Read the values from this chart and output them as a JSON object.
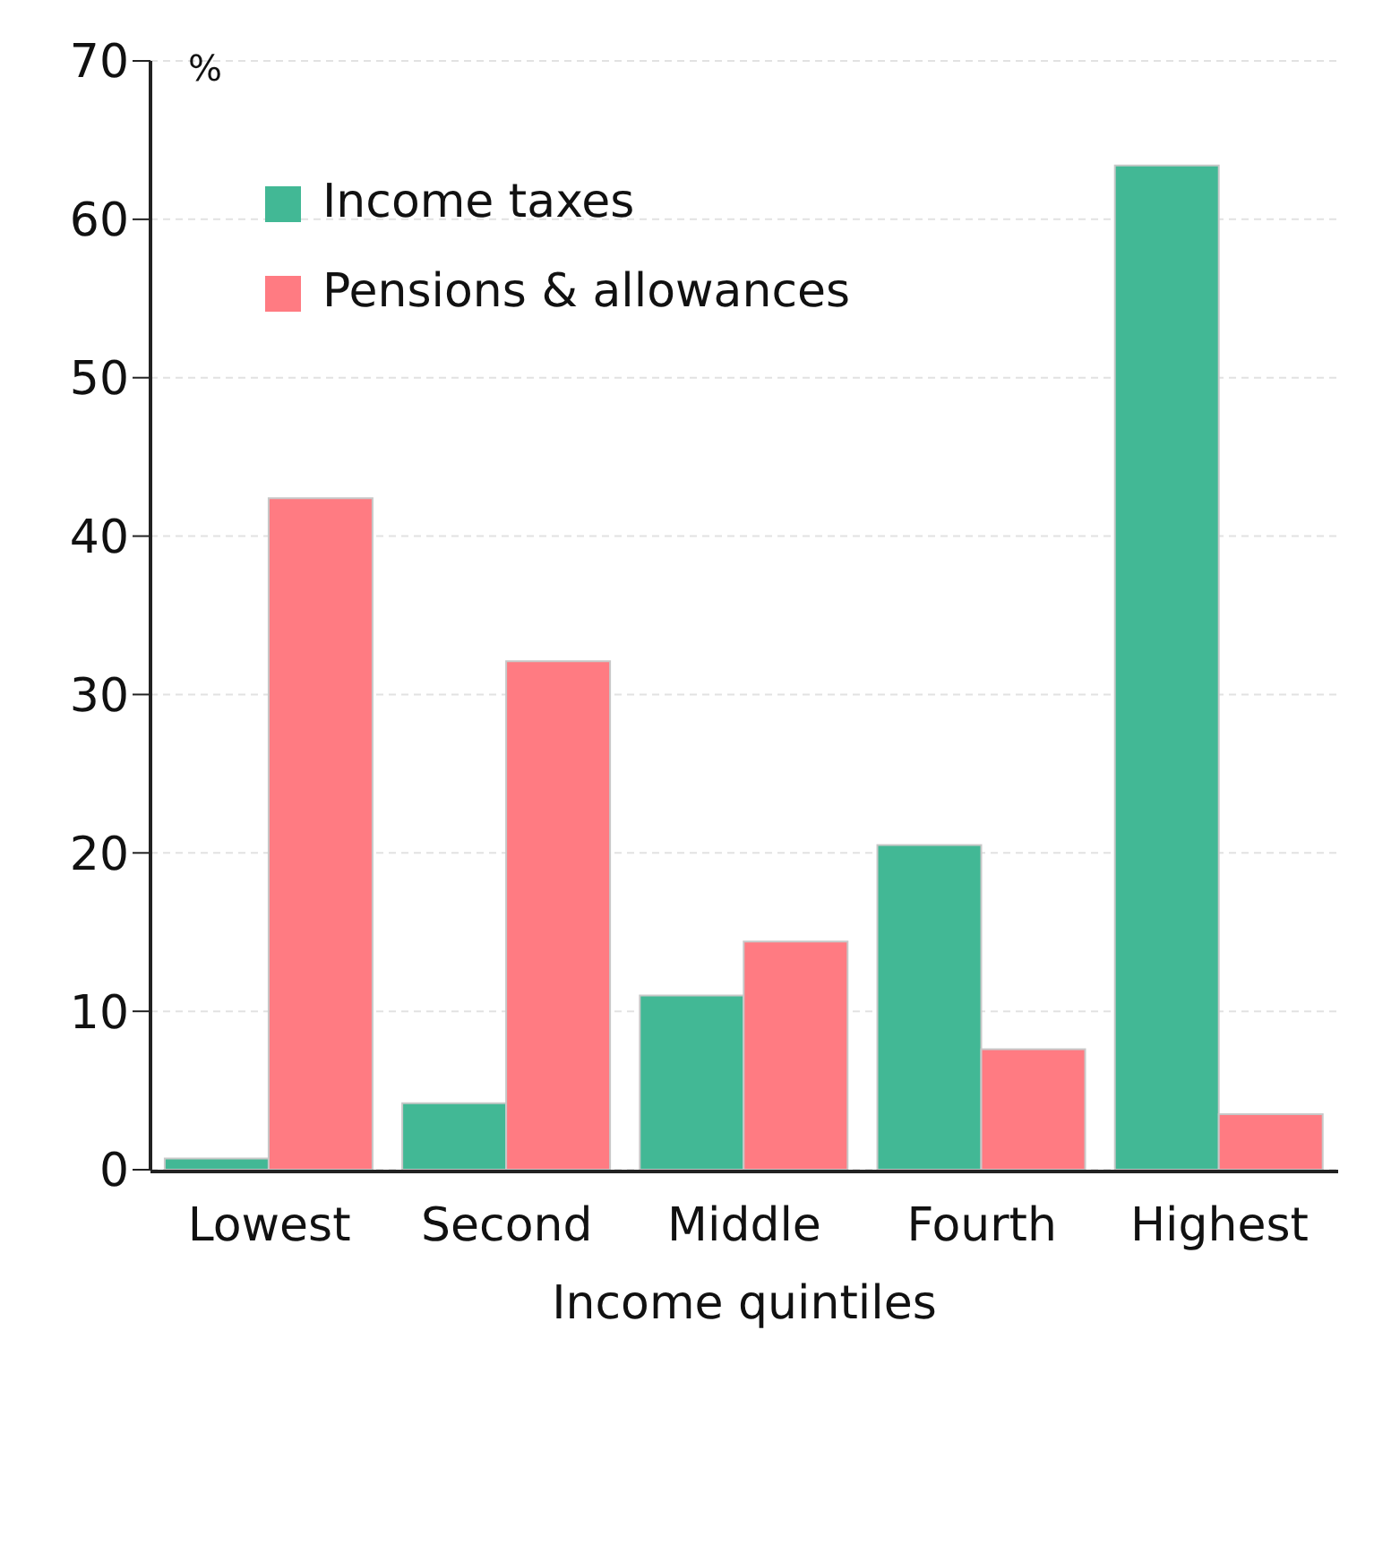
{
  "chart_data": {
    "type": "bar",
    "xlabel": "Income quintiles",
    "ylabel": "%",
    "categories": [
      "Lowest",
      "Second",
      "Middle",
      "Fourth",
      "Highest"
    ],
    "series": [
      {
        "name": "Income taxes",
        "color": "#42b895",
        "values": [
          0.7,
          4.2,
          11.0,
          20.5,
          63.4
        ]
      },
      {
        "name": "Pensions & allowances",
        "color": "#ff7b82",
        "values": [
          42.4,
          32.1,
          14.4,
          7.6,
          3.5
        ]
      }
    ],
    "ylim": [
      0,
      70
    ],
    "yticks": [
      0,
      10,
      20,
      30,
      40,
      50,
      60,
      70
    ],
    "grid": "y",
    "legend": "top left"
  }
}
